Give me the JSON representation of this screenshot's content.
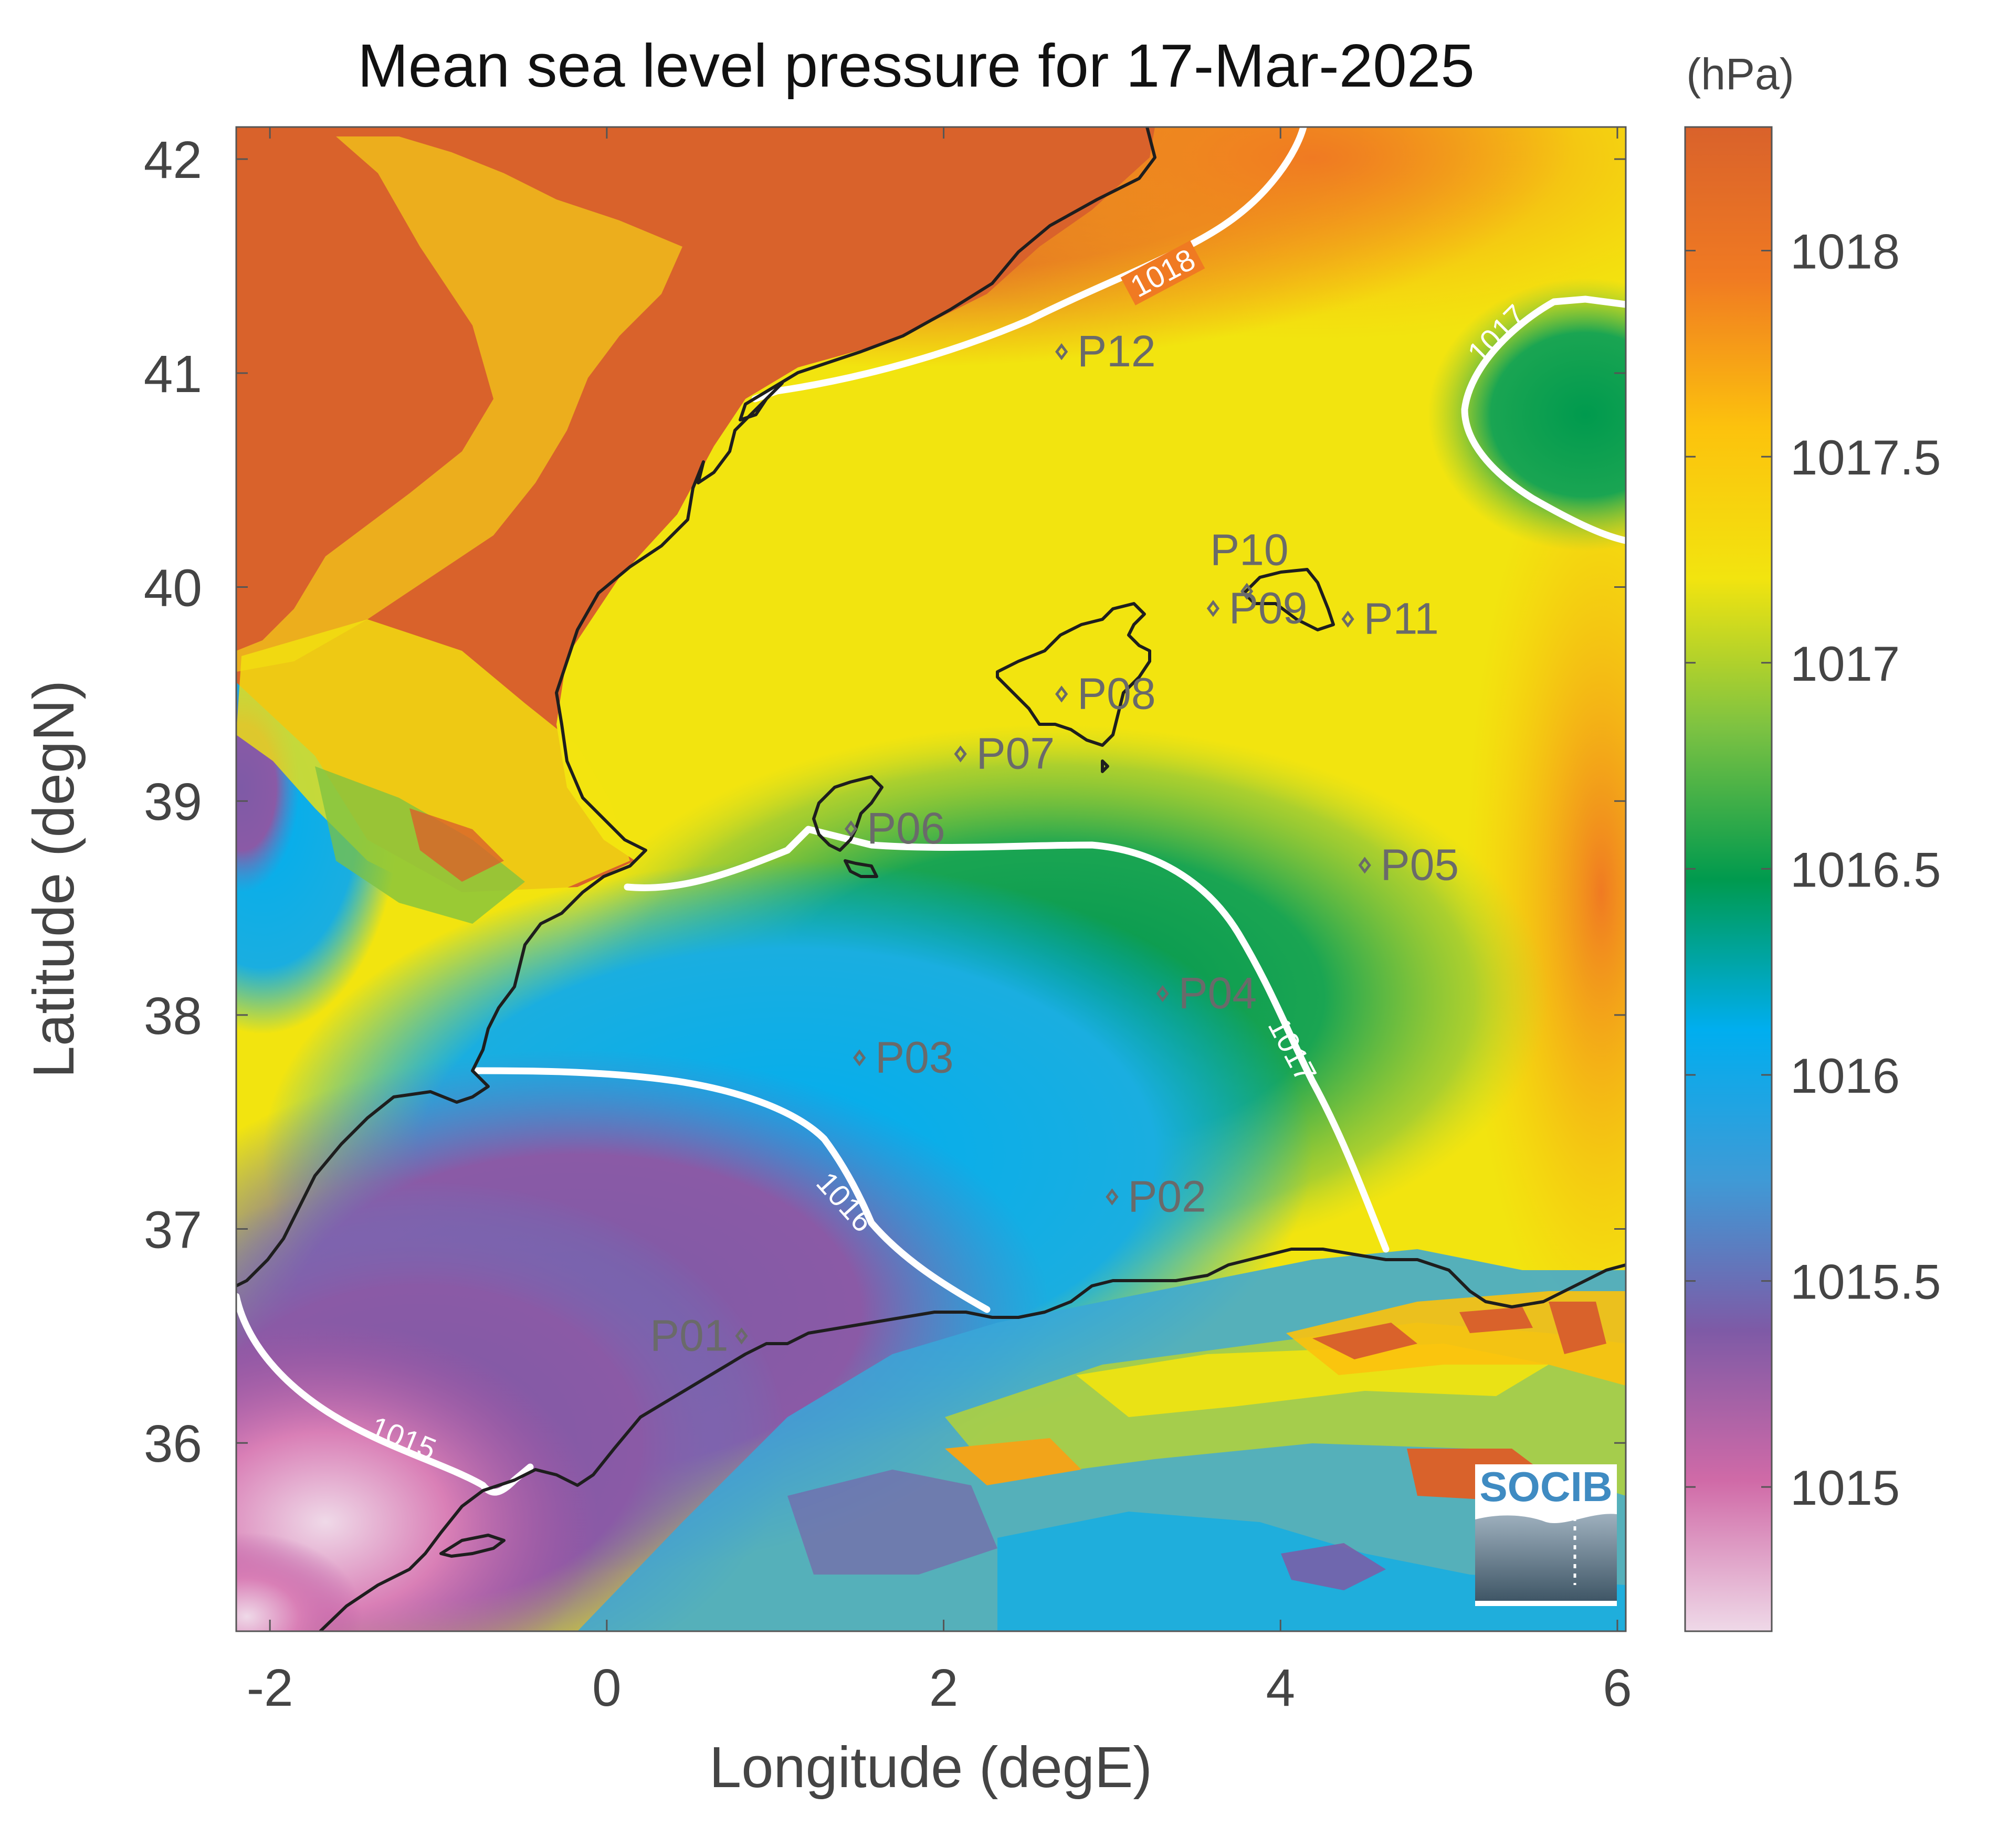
{
  "title": "Mean sea level pressure for 17-Mar-2025",
  "colorbar": {
    "unit_label": "(hPa)",
    "range": [
      1014.65,
      1018.3
    ],
    "ticks": [
      "1015",
      "1015.5",
      "1016",
      "1016.5",
      "1017",
      "1017.5",
      "1018"
    ],
    "colors": [
      "#efd9e8",
      "#d06aa7",
      "#7e5aa6",
      "#3f9ad6",
      "#00aeef",
      "#009a4e",
      "#7cc242",
      "#f2e40f",
      "#fcc20d",
      "#f07a22",
      "#d9622b"
    ]
  },
  "axes": {
    "xlabel": "Longitude (degE)",
    "ylabel": "Latitude (degN)",
    "xlim": [
      -2.2,
      6.05
    ],
    "ylim": [
      35.12,
      42.15
    ],
    "xticks": [
      "-2",
      "0",
      "2",
      "4",
      "6"
    ],
    "yticks": [
      "36",
      "37",
      "38",
      "39",
      "40",
      "41",
      "42"
    ]
  },
  "contours": [
    "1015",
    "1016",
    "1017",
    "1017",
    "1018"
  ],
  "points": [
    {
      "id": "P01",
      "lon": 0.8,
      "lat": 36.5
    },
    {
      "id": "P02",
      "lon": 3.0,
      "lat": 37.15
    },
    {
      "id": "P03",
      "lon": 1.5,
      "lat": 37.8
    },
    {
      "id": "P04",
      "lon": 3.3,
      "lat": 38.1
    },
    {
      "id": "P05",
      "lon": 4.5,
      "lat": 38.7
    },
    {
      "id": "P06",
      "lon": 1.45,
      "lat": 38.87
    },
    {
      "id": "P07",
      "lon": 2.1,
      "lat": 39.22
    },
    {
      "id": "P08",
      "lon": 2.7,
      "lat": 39.5
    },
    {
      "id": "P09",
      "lon": 3.6,
      "lat": 39.9
    },
    {
      "id": "P10",
      "lon": 3.8,
      "lat": 39.98
    },
    {
      "id": "P11",
      "lon": 4.4,
      "lat": 39.85
    },
    {
      "id": "P12",
      "lon": 2.7,
      "lat": 41.1
    }
  ],
  "logo": {
    "text": "SOCIB"
  }
}
